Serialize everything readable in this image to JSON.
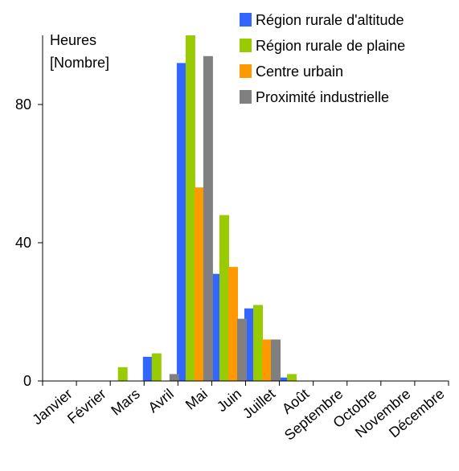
{
  "chart_data": {
    "type": "bar",
    "ylabel_line1": "Heures",
    "ylabel_line2": "[Nombre]",
    "ylim": [
      0,
      100
    ],
    "yticks": [
      0,
      40,
      80
    ],
    "grid": false,
    "legend_position": "top-right",
    "categories": [
      "Janvier",
      "Février",
      "Mars",
      "Avril",
      "Mai",
      "Juin",
      "Juillet",
      "Août",
      "Septembre",
      "Octobre",
      "Novembre",
      "Décembre"
    ],
    "series": [
      {
        "name": "Région rurale d'altitude",
        "color": "#3366ff",
        "values": [
          0,
          0,
          0,
          7,
          92,
          31,
          21,
          1,
          0,
          0,
          0,
          0
        ]
      },
      {
        "name": "Région rurale de plaine",
        "color": "#99cc00",
        "values": [
          0,
          0,
          4,
          8,
          100,
          48,
          22,
          2,
          0,
          0,
          0,
          0
        ]
      },
      {
        "name": "Centre urbain",
        "color": "#ff9900",
        "values": [
          0,
          0,
          0,
          0,
          56,
          33,
          12,
          0,
          0,
          0,
          0,
          0
        ]
      },
      {
        "name": "Proximité industrielle",
        "color": "#808080",
        "values": [
          0,
          0,
          0,
          2,
          94,
          18,
          12,
          0,
          0,
          0,
          0,
          0
        ]
      }
    ]
  }
}
